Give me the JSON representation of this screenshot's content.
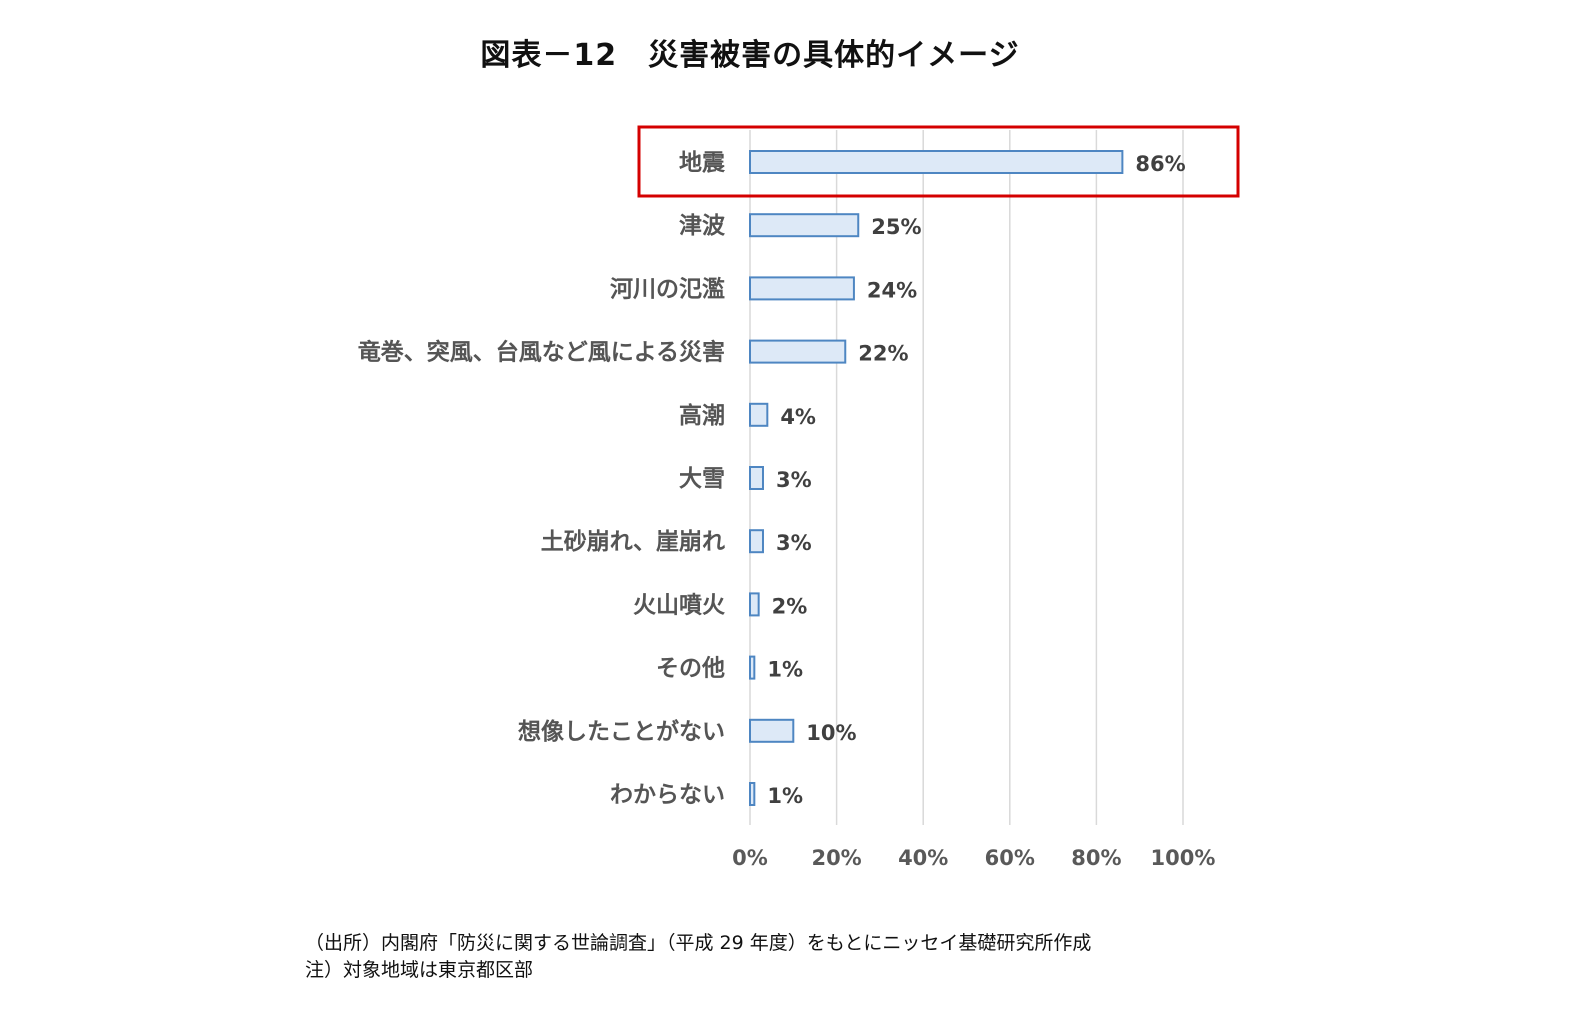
{
  "title": "図表－12　災害被害の具体的イメージ",
  "chart_data": {
    "type": "bar",
    "orientation": "horizontal",
    "categories": [
      "地震",
      "津波",
      "河川の氾濫",
      "竜巻、突風、台風など風による災害",
      "高潮",
      "大雪",
      "土砂崩れ、崖崩れ",
      "火山噴火",
      "その他",
      "想像したことがない",
      "わからない"
    ],
    "values": [
      86,
      25,
      24,
      22,
      4,
      3,
      3,
      2,
      1,
      10,
      1
    ],
    "value_labels": [
      "86%",
      "25%",
      "24%",
      "22%",
      "4%",
      "3%",
      "3%",
      "2%",
      "1%",
      "10%",
      "1%"
    ],
    "xlim": [
      0,
      100
    ],
    "x_ticks": [
      "0%",
      "20%",
      "40%",
      "60%",
      "80%",
      "100%"
    ],
    "grid": true,
    "highlight_category": "地震",
    "colors": {
      "bar_fill": "#dde9f7",
      "bar_stroke": "#4e86c2",
      "highlight_box": "#d40000",
      "grid": "#d9d9d9"
    }
  },
  "footer": {
    "source": "（出所）内閣府「防災に関する世論調査」（平成 29 年度）をもとにニッセイ基礎研究所作成",
    "note": "注）対象地域は東京都区部"
  }
}
